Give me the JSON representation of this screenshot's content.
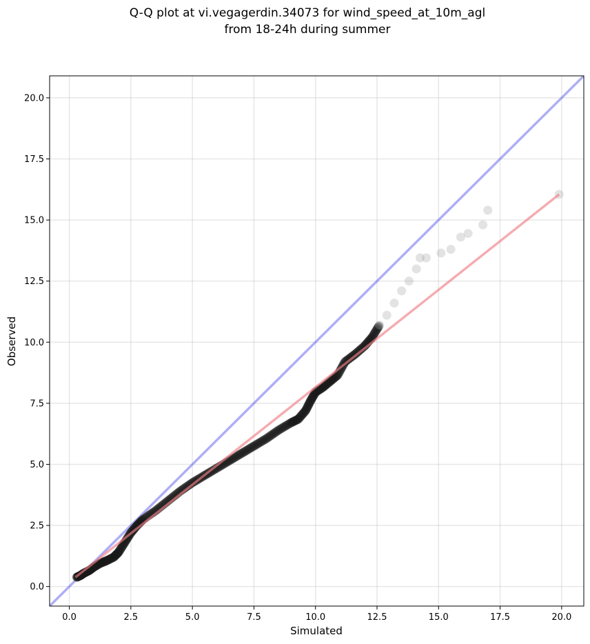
{
  "chart_data": {
    "type": "scatter",
    "title_line1": "Q-Q plot at vi.vegagerdin.34073 for wind_speed_at_10m_agl",
    "title_line2": "from 18-24h during summer",
    "xlabel": "Simulated",
    "ylabel": "Observed",
    "xlim": [
      -0.8,
      20.9
    ],
    "ylim": [
      -0.8,
      20.9
    ],
    "xticks": [
      0.0,
      2.5,
      5.0,
      7.5,
      10.0,
      12.5,
      15.0,
      17.5,
      20.0
    ],
    "yticks": [
      0.0,
      2.5,
      5.0,
      7.5,
      10.0,
      12.5,
      15.0,
      17.5,
      20.0
    ],
    "tick_labels": [
      "0.0",
      "2.5",
      "5.0",
      "7.5",
      "10.0",
      "12.5",
      "15.0",
      "17.5",
      "20.0"
    ],
    "grid": true,
    "reference_line": {
      "from": [
        -0.8,
        -0.8
      ],
      "to": [
        20.9,
        20.9
      ],
      "color": "#4c4cee"
    },
    "fit_line": {
      "from": [
        0.25,
        0.38
      ],
      "to": [
        19.9,
        16.05
      ],
      "color": "#f07f86"
    },
    "dense_points_color": "#1a1a1a",
    "tail_points_color": "#9a9a9a",
    "quantiles": [
      [
        0.3,
        0.38
      ],
      [
        0.45,
        0.45
      ],
      [
        0.6,
        0.55
      ],
      [
        0.8,
        0.65
      ],
      [
        1.0,
        0.8
      ],
      [
        1.25,
        0.95
      ],
      [
        1.5,
        1.05
      ],
      [
        1.8,
        1.2
      ],
      [
        2.0,
        1.4
      ],
      [
        2.25,
        1.8
      ],
      [
        2.5,
        2.2
      ],
      [
        2.75,
        2.5
      ],
      [
        3.0,
        2.75
      ],
      [
        3.5,
        3.1
      ],
      [
        4.0,
        3.5
      ],
      [
        4.5,
        3.9
      ],
      [
        5.0,
        4.25
      ],
      [
        5.5,
        4.55
      ],
      [
        6.0,
        4.85
      ],
      [
        6.5,
        5.15
      ],
      [
        7.0,
        5.45
      ],
      [
        7.5,
        5.75
      ],
      [
        8.0,
        6.05
      ],
      [
        8.5,
        6.4
      ],
      [
        9.0,
        6.7
      ],
      [
        9.3,
        6.85
      ],
      [
        9.6,
        7.2
      ],
      [
        9.8,
        7.6
      ],
      [
        10.0,
        7.95
      ],
      [
        10.3,
        8.15
      ],
      [
        10.6,
        8.4
      ],
      [
        10.9,
        8.65
      ],
      [
        11.2,
        9.2
      ],
      [
        11.6,
        9.5
      ],
      [
        12.0,
        9.85
      ],
      [
        12.3,
        10.2
      ],
      [
        12.6,
        10.7
      ],
      [
        12.9,
        11.1
      ],
      [
        13.2,
        11.6
      ],
      [
        13.5,
        12.1
      ],
      [
        13.8,
        12.5
      ],
      [
        14.1,
        13.0
      ],
      [
        14.25,
        13.45
      ],
      [
        14.5,
        13.45
      ],
      [
        15.1,
        13.65
      ],
      [
        15.5,
        13.8
      ],
      [
        15.9,
        14.3
      ],
      [
        16.2,
        14.45
      ],
      [
        16.8,
        14.8
      ],
      [
        17.0,
        15.4
      ],
      [
        19.9,
        16.05
      ]
    ]
  }
}
